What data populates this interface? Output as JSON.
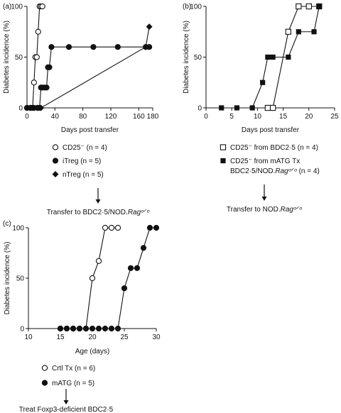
{
  "chart_data": [
    {
      "type": "line",
      "panel_label": "(a)",
      "xlabel": "Days post transfer",
      "ylabel": "Diabetes incidence (%)",
      "xlim": [
        0,
        180
      ],
      "ylim": [
        0,
        100
      ],
      "xticks": [
        0,
        40,
        80,
        120,
        160,
        180
      ],
      "yticks": [
        0,
        50,
        100
      ],
      "series": [
        {
          "name": "CD25⁻",
          "n_label": "(n = 4)",
          "marker": "open-circle",
          "x": [
            0,
            5,
            8,
            10,
            12,
            14,
            16,
            18,
            20,
            22
          ],
          "y": [
            0,
            0,
            0,
            25,
            50,
            50,
            75,
            100,
            100,
            100
          ]
        },
        {
          "name": "iTreg",
          "n_label": "(n = 5)",
          "marker": "filled-circle",
          "x": [
            0,
            5,
            10,
            15,
            18,
            20,
            22,
            25,
            28,
            30,
            32,
            35,
            60,
            95,
            130,
            170,
            175
          ],
          "y": [
            0,
            0,
            0,
            0,
            0,
            20,
            20,
            20,
            20,
            40,
            40,
            60,
            60,
            60,
            60,
            60,
            60
          ]
        },
        {
          "name": "nTreg",
          "n_label": "(n = 5)",
          "marker": "diamond",
          "x": [
            0,
            5,
            10,
            15,
            20,
            170,
            175
          ],
          "y": [
            0,
            0,
            0,
            0,
            0,
            60,
            80
          ]
        }
      ],
      "footer": {
        "prefix": "Transfer to BDC2·5/NOD.",
        "suffix": "Ragᵒᐟᵒ"
      }
    },
    {
      "type": "line",
      "panel_label": "(b)",
      "xlabel": "Days post transfer",
      "ylabel": "Diabetes incidence (%)",
      "xlim": [
        0,
        25
      ],
      "ylim": [
        0,
        100
      ],
      "xticks": [
        0,
        5,
        10,
        15,
        20,
        25
      ],
      "yticks": [
        0,
        50,
        100
      ],
      "series": [
        {
          "name": "CD25⁻ from BDC2·5",
          "n_label": "(n = 4)",
          "marker": "open-square",
          "x": [
            12,
            13,
            16,
            18,
            20,
            22
          ],
          "y": [
            0,
            0,
            75,
            100,
            100,
            100
          ]
        },
        {
          "name": "CD25⁻ from mATG Tx",
          "name2_prefix": "BDC2·5/NOD.",
          "name2_italic": "Ragᵒᐟᵒ",
          "n_label": "(n = 4)",
          "marker": "filled-square",
          "x": [
            3,
            6,
            9,
            11,
            12,
            13,
            16,
            18,
            21,
            22
          ],
          "y": [
            0,
            0,
            0,
            25,
            50,
            50,
            50,
            75,
            75,
            100
          ]
        }
      ],
      "footer": {
        "prefix": "Transfer to NOD.",
        "suffix": "Ragᵒᐟᵒ"
      }
    },
    {
      "type": "line",
      "panel_label": "(c)",
      "xlabel": "Age (days)",
      "ylabel": "Diabetes incidence (%)",
      "xlim": [
        10,
        30
      ],
      "ylim": [
        0,
        100
      ],
      "xticks": [
        10,
        15,
        20,
        25,
        30
      ],
      "yticks": [
        0,
        50,
        100
      ],
      "series": [
        {
          "name": "Crtl Tx",
          "n_label": "(n = 6)",
          "marker": "open-circle",
          "x": [
            15,
            16,
            17,
            18,
            19,
            20,
            21,
            22,
            23,
            24
          ],
          "y": [
            0,
            0,
            0,
            0,
            0,
            50,
            67,
            100,
            100,
            100
          ]
        },
        {
          "name": "mATG",
          "n_label": "(n = 5)",
          "marker": "filled-circle",
          "x": [
            15,
            16,
            17,
            18,
            19,
            20,
            21,
            22,
            23,
            24,
            25,
            26,
            27,
            28,
            29,
            30
          ],
          "y": [
            0,
            0,
            0,
            0,
            0,
            0,
            0,
            0,
            0,
            0,
            40,
            60,
            60,
            80,
            100,
            100
          ]
        }
      ],
      "footer": {
        "prefix": "Treat Foxp3-deficient BDC2·5",
        "suffix": ""
      }
    }
  ]
}
